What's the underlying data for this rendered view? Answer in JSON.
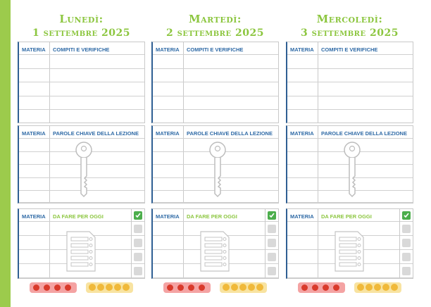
{
  "days": [
    {
      "name": "Lunedì:",
      "date": "1 settembre 2025"
    },
    {
      "name": "Martedì:",
      "date": "2 settembre 2025"
    },
    {
      "name": "Mercoledì:",
      "date": "3 settembre 2025"
    }
  ],
  "headers": {
    "materia": "MATERIA",
    "compiti": "COMPITI E VERIFICHE",
    "parole": "PAROLE CHIAVE DELLA LEZIONE",
    "da_fare": "DA FARE PER OGGI"
  },
  "icons": {
    "key": "key-icon",
    "todo": "checklist-icon",
    "check": "check-icon",
    "mood_dots": "traffic-dots-icon",
    "mood_faces": "emoji-faces-icon"
  },
  "colors": {
    "accent_green": "#8cc63f",
    "header_blue": "#2f6aa6"
  }
}
